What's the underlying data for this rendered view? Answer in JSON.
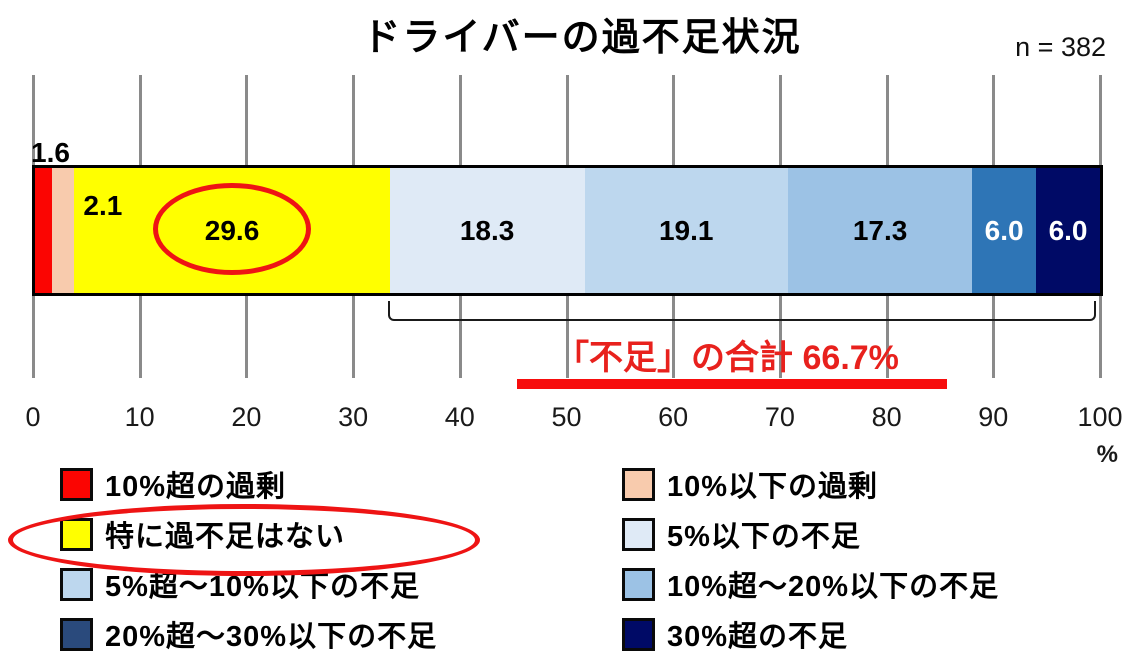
{
  "title": "ドライバーの過不足状況",
  "sample_size_label": "n = 382",
  "chart_data": {
    "type": "bar",
    "orientation": "horizontal-stacked",
    "title": "ドライバーの過不足状況",
    "n": 382,
    "xlabel": "%",
    "xlim": [
      0,
      100
    ],
    "x_ticks": [
      "0",
      "10",
      "20",
      "30",
      "40",
      "50",
      "60",
      "70",
      "80",
      "90",
      "100"
    ],
    "grid": true,
    "segments": [
      {
        "label": "10%超の過剰",
        "value": 1.6,
        "display": "1.6",
        "color": "#fb0502",
        "text_color": "#000000",
        "label_placement": "above",
        "circled": false
      },
      {
        "label": "10%以下の過剰",
        "value": 2.1,
        "display": "2.1",
        "color": "#f8cbad",
        "text_color": "#000000",
        "label_placement": "offset-right",
        "circled": false
      },
      {
        "label": "特に過不足はない",
        "value": 29.6,
        "display": "29.6",
        "color": "#ffff00",
        "text_color": "#000000",
        "label_placement": "center",
        "circled": true
      },
      {
        "label": "5%以下の不足",
        "value": 18.3,
        "display": "18.3",
        "color": "#dfeaf6",
        "text_color": "#000000",
        "label_placement": "center",
        "circled": false
      },
      {
        "label": "5%超～10%以下の不足",
        "value": 19.1,
        "display": "19.1",
        "color": "#bdd7ee",
        "text_color": "#000000",
        "label_placement": "center",
        "circled": false
      },
      {
        "label": "10%超～20%以下の不足",
        "value": 17.3,
        "display": "17.3",
        "color": "#9cc2e5",
        "text_color": "#000000",
        "label_placement": "center",
        "circled": false
      },
      {
        "label": "20%超～30%以下の不足",
        "value": 6.0,
        "display": "6.0",
        "color": "#2e75b6",
        "text_color": "#ffffff",
        "label_placement": "center",
        "circled": false
      },
      {
        "label": "30%超の不足",
        "value": 6.0,
        "display": "6.0",
        "color": "#000a66",
        "text_color": "#ffffff",
        "label_placement": "center",
        "circled": false
      }
    ],
    "annotation": {
      "text": "「不足」の合計 66.7%",
      "shortage_total": 66.7,
      "bracket_from_pct": 33.3,
      "bracket_to_pct": 100,
      "text_color": "#e8211d",
      "underline_color": "#f70d0d"
    }
  },
  "legend": {
    "columns": [
      {
        "items": [
          {
            "label": "10%超の過剰",
            "color": "#fb0502",
            "circled": false
          },
          {
            "label": "特に過不足はない",
            "color": "#ffff00",
            "circled": true
          },
          {
            "label": "5%超～10%以下の不足",
            "color": "#bdd7ee",
            "circled": false
          },
          {
            "label": "20%超～30%以下の不足",
            "color": "#2a4a7c",
            "circled": false
          }
        ]
      },
      {
        "items": [
          {
            "label": "10%以下の過剰",
            "color": "#f8cbad",
            "circled": false
          },
          {
            "label": "5%以下の不足",
            "color": "#dfeaf6",
            "circled": false
          },
          {
            "label": "10%超～20%以下の不足",
            "color": "#9cc2e5",
            "circled": false
          },
          {
            "label": "30%超の不足",
            "color": "#000a66",
            "circled": false
          }
        ]
      }
    ]
  }
}
